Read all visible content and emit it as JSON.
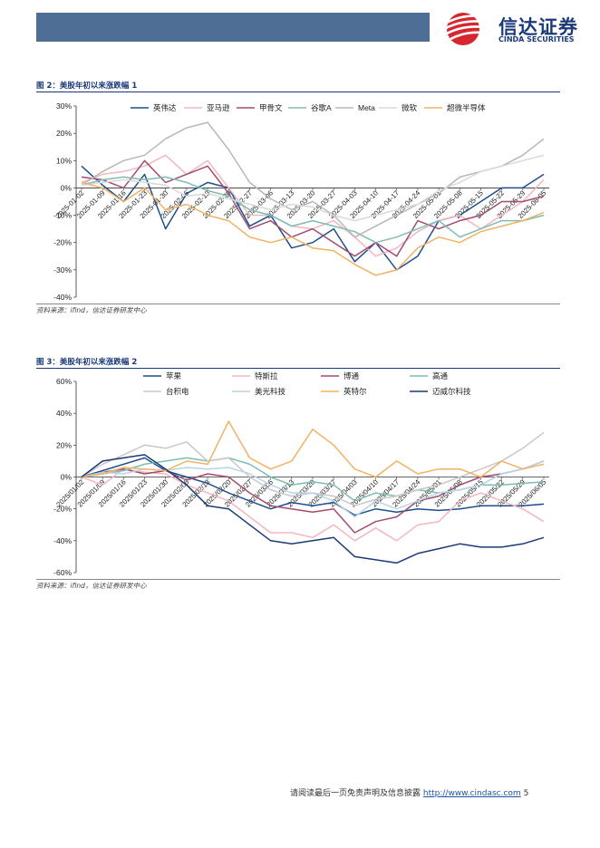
{
  "header": {
    "logo_cn": "信达证券",
    "logo_en": "CINDA SECURITIES",
    "colors": {
      "bar": "#4f6e95",
      "brand": "#1b3a78",
      "logo_red": "#d7262d"
    }
  },
  "figure2": {
    "title": "图 2：美股年初以来涨跌幅 1",
    "source": "资料来源：ifind，信达证券研发中心"
  },
  "figure3": {
    "title": "图 3：美股年初以来涨跌幅 2",
    "source": "资料来源：ifind，信达证券研发中心"
  },
  "footer": {
    "disclaimer": "请阅读最后一页免责声明及信息披露",
    "url": "http://www.cindasc.com",
    "page_number": "5"
  },
  "chart_data": [
    {
      "type": "line",
      "ylim": [
        -40,
        30
      ],
      "yticks": [
        30,
        20,
        10,
        0,
        -10,
        -20,
        -30,
        -40
      ],
      "ytick_labels": [
        "30%",
        "20%",
        "10%",
        "0%",
        "-10%",
        "-20%",
        "-30%",
        "-40%"
      ],
      "x_labels": [
        "2025-01-02",
        "2025-01-09",
        "2025-01-16",
        "2025-01-23",
        "2025-01-30",
        "2025-02-06",
        "2025-02-13",
        "2025-02-20",
        "2025-02-27",
        "2025-03-06",
        "2025-03-13",
        "2025-03-20",
        "2025-03-27",
        "2025-04-03",
        "2025-04-10",
        "2025-04-17",
        "2025-04-24",
        "2025-05-01",
        "2025-05-08",
        "2025-05-15",
        "2025-05-22",
        "2025-05-29",
        "2025-06-05"
      ],
      "legend_position": "top",
      "grid": false,
      "series": [
        {
          "name": "英伟达",
          "color": "#1f4e8c",
          "values": [
            8,
            1,
            -5,
            5,
            -15,
            -2,
            2,
            0,
            -14,
            -10,
            -22,
            -20,
            -15,
            -27,
            -20,
            -30,
            -25,
            -12,
            -10,
            -5,
            0,
            0,
            5
          ]
        },
        {
          "name": "亚马逊",
          "color": "#f4b6bf",
          "values": [
            2,
            5,
            6,
            8,
            12,
            5,
            10,
            0,
            -10,
            -10,
            -14,
            -15,
            -12,
            -18,
            -25,
            -22,
            -16,
            -12,
            -10,
            -15,
            -10,
            -5,
            3
          ]
        },
        {
          "name": "甲骨文",
          "color": "#a24d6e",
          "values": [
            4,
            3,
            0,
            10,
            2,
            5,
            8,
            -2,
            -15,
            -12,
            -18,
            -15,
            -20,
            -25,
            -20,
            -25,
            -12,
            -15,
            -12,
            -10,
            -5,
            -5,
            -3
          ]
        },
        {
          "name": "谷歌A",
          "color": "#7fbcb4",
          "values": [
            1,
            3,
            4,
            3,
            4,
            2,
            -1,
            -3,
            -8,
            -10,
            -14,
            -12,
            -14,
            -16,
            -20,
            -18,
            -15,
            -12,
            -18,
            -15,
            -12,
            -12,
            -10
          ]
        },
        {
          "name": "Meta",
          "color": "#b7b7b7",
          "values": [
            1,
            6,
            10,
            12,
            18,
            22,
            24,
            14,
            2,
            -4,
            -8,
            -5,
            -10,
            -18,
            -14,
            -10,
            -6,
            -2,
            4,
            6,
            8,
            12,
            18
          ]
        },
        {
          "name": "微软",
          "color": "#d9d9d9",
          "values": [
            1,
            2,
            3,
            2,
            1,
            -3,
            -2,
            -4,
            -6,
            -8,
            -6,
            -7,
            -10,
            -12,
            -10,
            -8,
            -6,
            -1,
            2,
            6,
            8,
            10,
            12
          ]
        },
        {
          "name": "超微半导体",
          "color": "#f2b264",
          "values": [
            2,
            0,
            -5,
            0,
            -8,
            -6,
            -10,
            -12,
            -18,
            -20,
            -18,
            -22,
            -23,
            -28,
            -32,
            -30,
            -22,
            -18,
            -20,
            -16,
            -14,
            -12,
            -9
          ]
        }
      ]
    },
    {
      "type": "line",
      "ylim": [
        -60,
        60
      ],
      "yticks": [
        60,
        40,
        20,
        0,
        -20,
        -40,
        -60
      ],
      "ytick_labels": [
        "60%",
        "40%",
        "20%",
        "0%",
        "-20%",
        "-40%",
        "-60%"
      ],
      "x_labels": [
        "2025/01/02",
        "2025/01/09",
        "2025/01/16",
        "2025/01/23",
        "2025/01/30",
        "2025/02/06",
        "2025/02/13",
        "2025/02/20",
        "2025/02/27",
        "2025/03/06",
        "2025/03/13",
        "2025/03/20",
        "2025/03/27",
        "2025/04/03",
        "2025/04/10",
        "2025/04/17",
        "2025/04/24",
        "2025/05/01",
        "2025/05/08",
        "2025/05/15",
        "2025/05/22",
        "2025/05/29",
        "2025/06/05"
      ],
      "legend_position": "top",
      "grid": false,
      "series": [
        {
          "name": "苹果",
          "color": "#1f4e8c",
          "values": [
            0,
            4,
            8,
            12,
            4,
            0,
            -4,
            -10,
            -15,
            -20,
            -16,
            -18,
            -16,
            -24,
            -20,
            -22,
            -20,
            -21,
            -20,
            -18,
            -18,
            -18,
            -17
          ]
        },
        {
          "name": "特斯拉",
          "color": "#f4b6bf",
          "values": [
            0,
            -5,
            5,
            3,
            2,
            -5,
            -10,
            -15,
            -25,
            -35,
            -35,
            -38,
            -30,
            -40,
            -32,
            -40,
            -30,
            -28,
            -15,
            -10,
            -15,
            -20,
            -28
          ]
        },
        {
          "name": "博通",
          "color": "#a24d6e",
          "values": [
            0,
            3,
            5,
            2,
            4,
            -2,
            2,
            0,
            -10,
            -18,
            -20,
            -22,
            -20,
            -35,
            -28,
            -25,
            -15,
            -12,
            -5,
            0,
            2,
            5,
            10
          ]
        },
        {
          "name": "高通",
          "color": "#7fbcb4",
          "values": [
            0,
            2,
            4,
            8,
            10,
            12,
            10,
            12,
            8,
            0,
            -5,
            -3,
            -5,
            -15,
            -10,
            -12,
            -8,
            -10,
            -8,
            -5,
            -5,
            -4,
            -3
          ]
        },
        {
          "name": "台积电",
          "color": "#c8c8c8",
          "values": [
            0,
            8,
            14,
            20,
            18,
            22,
            10,
            12,
            0,
            -8,
            -12,
            -10,
            -12,
            -18,
            -14,
            -12,
            -8,
            -5,
            0,
            5,
            10,
            18,
            28
          ]
        },
        {
          "name": "美光科技",
          "color": "#b8d4e8",
          "values": [
            0,
            3,
            2,
            5,
            4,
            6,
            5,
            6,
            2,
            -5,
            -10,
            -10,
            -15,
            -25,
            -15,
            -20,
            -15,
            -10,
            -8,
            -5,
            2,
            5,
            10
          ]
        },
        {
          "name": "英特尔",
          "color": "#f2b264",
          "values": [
            0,
            2,
            6,
            5,
            4,
            10,
            8,
            35,
            12,
            5,
            10,
            30,
            20,
            5,
            0,
            10,
            2,
            5,
            5,
            0,
            10,
            5,
            8
          ]
        },
        {
          "name": "迈威尔科技",
          "color": "#1b3a78",
          "values": [
            0,
            10,
            12,
            14,
            5,
            -5,
            -18,
            -20,
            -30,
            -40,
            -42,
            -40,
            -38,
            -50,
            -52,
            -54,
            -48,
            -45,
            -42,
            -44,
            -44,
            -42,
            -38
          ]
        }
      ]
    }
  ]
}
